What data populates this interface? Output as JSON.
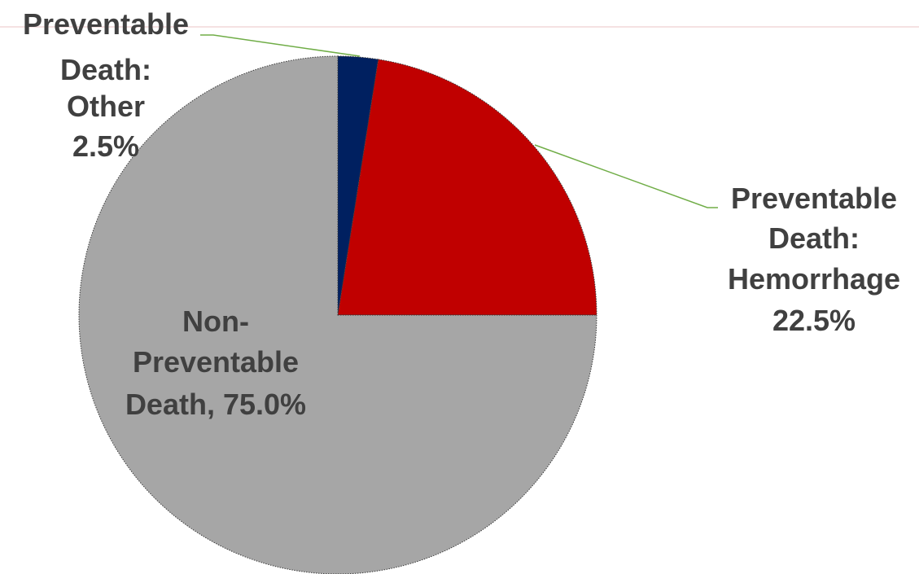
{
  "chart_data": {
    "type": "pie",
    "slices": [
      {
        "label": "Preventable Death: Other",
        "value": 2.5,
        "display": [
          "Preventable",
          "Death:",
          "Other",
          "2.5%"
        ],
        "color": "#002060"
      },
      {
        "label": "Preventable Death: Hemorrhage",
        "value": 22.5,
        "display": [
          "Preventable",
          "Death:",
          "Hemorrhage",
          "22.5%"
        ],
        "color": "#c00000"
      },
      {
        "label": "Non-Preventable Death",
        "value": 75.0,
        "display": [
          "Non-",
          "Preventable",
          "Death, 75.0%"
        ],
        "color": "#a6a6a6"
      }
    ],
    "start_angle": "12 o'clock",
    "direction": "clockwise",
    "legend": "none",
    "label_color": "#404040",
    "leader_line_color": "#70ad47"
  }
}
